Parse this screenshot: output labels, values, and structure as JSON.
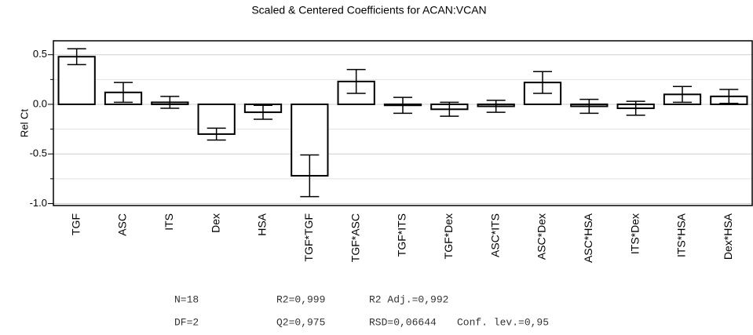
{
  "chart_data": {
    "type": "bar",
    "title": "Scaled & Centered Coefficients for ACAN:VCAN",
    "y_label": "Rel Ct",
    "categories": [
      "TGF",
      "ASC",
      "ITS",
      "Dex",
      "HSA",
      "TGF*TGF",
      "TGF*ASC",
      "TGF*ITS",
      "TGF*Dex",
      "ASC*ITS",
      "ASC*Dex",
      "ASC*HSA",
      "ITS*Dex",
      "ITS*HSA",
      "Dex*HSA"
    ],
    "values": [
      0.48,
      0.12,
      0.02,
      -0.3,
      -0.08,
      -0.72,
      0.23,
      -0.01,
      -0.05,
      -0.02,
      0.22,
      -0.02,
      -0.04,
      0.1,
      0.08
    ],
    "errors": [
      0.08,
      0.1,
      0.06,
      0.06,
      0.07,
      0.21,
      0.12,
      0.08,
      0.07,
      0.06,
      0.11,
      0.07,
      0.07,
      0.08,
      0.07
    ],
    "color": "#ffffff",
    "ylim": [
      -1.02,
      0.64
    ],
    "yticks": [
      0.5,
      {
        "value": 0,
        "label": "0.0"
      },
      -0.5,
      {
        "value": -1,
        "label": "-1.0"
      }
    ],
    "minor_yticks": [
      0.25,
      -0.25,
      -0.75
    ],
    "grid": true,
    "stats": [
      [
        "N=18",
        "R2=0,999",
        "R2 Adj.=0,992"
      ],
      [
        "DF=2",
        "Q2=0,975",
        "RSD=0,06644",
        "Conf. lev.=0,95"
      ]
    ]
  }
}
